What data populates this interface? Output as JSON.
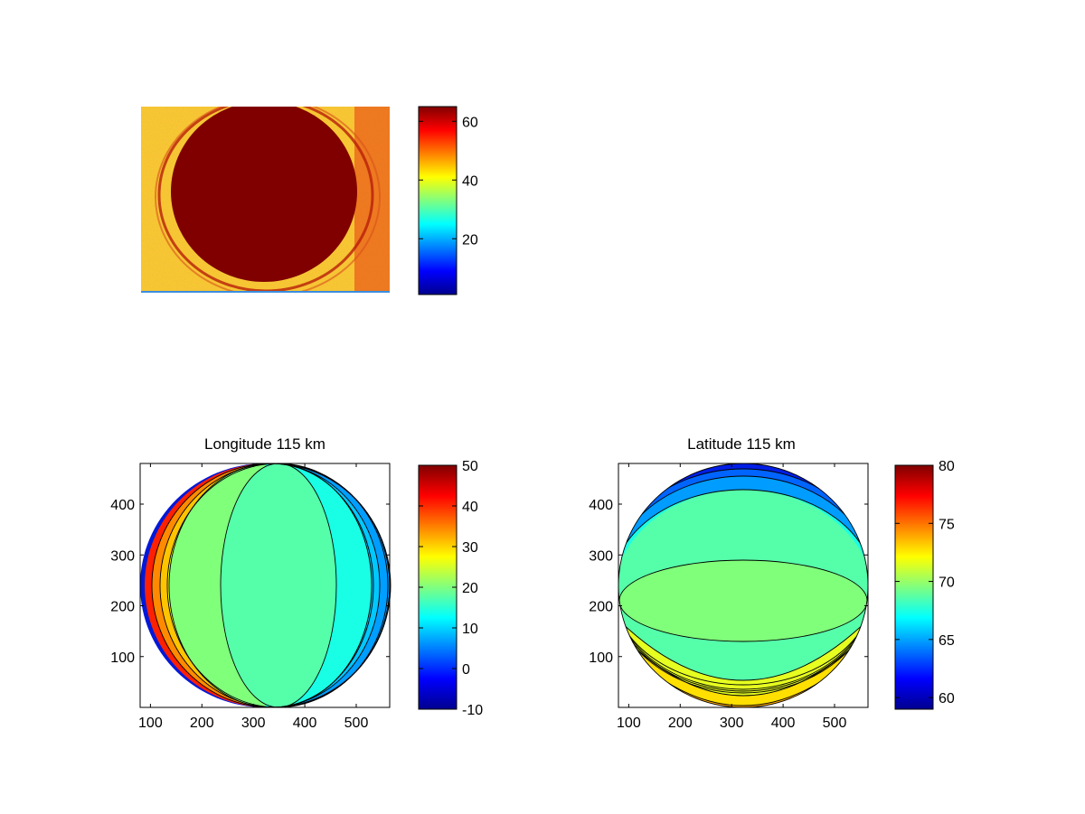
{
  "colors": {
    "image_background": "#f6c832",
    "disk_fill": "#800000",
    "axis": "#000000"
  },
  "chart_data": [
    {
      "name": "image-panel",
      "type": "heatmap",
      "title": "",
      "xlabel": "",
      "ylabel": "",
      "axis": "off",
      "colorbar": {
        "range": [
          1,
          65
        ],
        "ticks": [
          20,
          40,
          60
        ],
        "tick_labels": [
          "20",
          "40",
          "60"
        ],
        "colormap": "jet"
      }
    },
    {
      "name": "longitude-panel",
      "type": "heatmap",
      "subtype": "filled-contour",
      "title": "Longitude 115 km",
      "xlabel": "",
      "ylabel": "",
      "xlim": [
        80,
        565
      ],
      "ylim": [
        0,
        480
      ],
      "xticks": [
        100,
        200,
        300,
        400,
        500
      ],
      "xtick_labels": [
        "100",
        "200",
        "300",
        "400",
        "500"
      ],
      "yticks": [
        100,
        200,
        300,
        400
      ],
      "ytick_labels": [
        "100",
        "200",
        "300",
        "400"
      ],
      "disk": {
        "center": [
          323,
          240
        ],
        "radius_x": 243,
        "radius_y": 240
      },
      "contour_levels": [
        {
          "band": "center",
          "value": 20
        },
        {
          "band": "left-1",
          "value": 25
        },
        {
          "band": "left-2",
          "value": 30
        },
        {
          "band": "left-3",
          "value": 35
        },
        {
          "band": "left-4",
          "value": 40
        },
        {
          "band": "right-1",
          "value": 15
        },
        {
          "band": "right-2",
          "value": 10
        },
        {
          "band": "right-3",
          "value": 5
        }
      ],
      "colorbar": {
        "range": [
          -10,
          50
        ],
        "ticks": [
          -10,
          0,
          10,
          20,
          30,
          40,
          50
        ],
        "tick_labels": [
          "-10",
          "0",
          "10",
          "20",
          "30",
          "40",
          "50"
        ],
        "colormap": "jet"
      }
    },
    {
      "name": "latitude-panel",
      "type": "heatmap",
      "subtype": "filled-contour",
      "title": "Latitude 115 km",
      "xlabel": "",
      "ylabel": "",
      "xlim": [
        80,
        565
      ],
      "ylim": [
        0,
        480
      ],
      "xticks": [
        100,
        200,
        300,
        400,
        500
      ],
      "xtick_labels": [
        "100",
        "200",
        "300",
        "400",
        "500"
      ],
      "yticks": [
        100,
        200,
        300,
        400
      ],
      "ytick_labels": [
        "100",
        "200",
        "300",
        "400"
      ],
      "disk": {
        "center": [
          323,
          240
        ],
        "radius_x": 243,
        "radius_y": 240
      },
      "contour_levels": [
        {
          "band": "top-3",
          "value": 64
        },
        {
          "band": "top-2",
          "value": 65
        },
        {
          "band": "top-1",
          "value": 67
        },
        {
          "band": "upper",
          "value": 68
        },
        {
          "band": "middle",
          "value": 70
        },
        {
          "band": "lower",
          "value": 72
        },
        {
          "band": "bottom-1",
          "value": 73
        },
        {
          "band": "bottom-2",
          "value": 74
        },
        {
          "band": "bottom-3",
          "value": 76
        },
        {
          "band": "bottom-4",
          "value": 78
        }
      ],
      "colorbar": {
        "range": [
          59,
          80
        ],
        "ticks": [
          60,
          65,
          70,
          75,
          80
        ],
        "tick_labels": [
          "60",
          "65",
          "70",
          "75",
          "80"
        ],
        "colormap": "jet"
      }
    }
  ]
}
